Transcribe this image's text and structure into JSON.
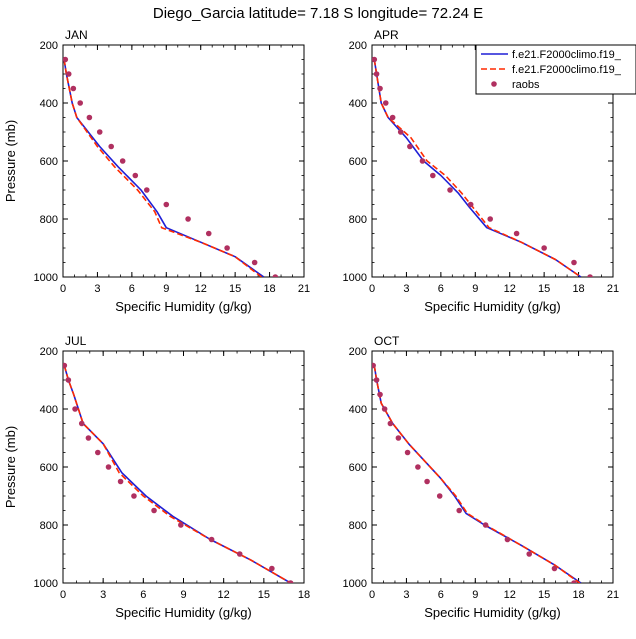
{
  "figure": {
    "title": "Diego_Garcia  latitude= 7.18 S longitude= 72.24 E"
  },
  "colors": {
    "series_blue": "#1f1fd6",
    "series_red": "#ff2a00",
    "raobs": "#b03060",
    "axis": "#000000"
  },
  "legend": {
    "entries": [
      {
        "label": "f.e21.F2000climo.f19_",
        "style": "solid",
        "color": "#1f1fd6"
      },
      {
        "label": "f.e21.F2000climo.f19_",
        "style": "dashed",
        "color": "#ff2a00"
      },
      {
        "label": "raobs",
        "style": "marker",
        "color": "#b03060"
      }
    ]
  },
  "chart_data": [
    {
      "type": "line",
      "panel": "JAN",
      "xlabel": "Specific Humidity (g/kg)",
      "ylabel": "Pressure (mb)",
      "xlim": [
        0,
        21
      ],
      "ylim": [
        200,
        1000
      ],
      "xticks": [
        0,
        3,
        6,
        9,
        12,
        15,
        18,
        21
      ],
      "yticks": [
        200,
        400,
        600,
        800,
        1000
      ],
      "y_inverted": true,
      "series": [
        {
          "name": "f.e21.F2000climo.f19_",
          "style": "solid",
          "x": [
            0.1,
            0.3,
            0.8,
            1.2,
            3.2,
            4.8,
            6.8,
            8.2,
            9.0,
            12.0,
            15.0,
            17.5
          ],
          "y": [
            250,
            300,
            400,
            450,
            550,
            620,
            700,
            775,
            830,
            880,
            930,
            1000
          ]
        },
        {
          "name": "f.e21.F2000climo.f19_",
          "style": "dashed",
          "x": [
            0.1,
            0.3,
            0.8,
            1.2,
            3.0,
            4.5,
            6.5,
            8.0,
            8.6,
            12.0,
            15.0,
            17.3
          ],
          "y": [
            250,
            300,
            400,
            450,
            550,
            620,
            700,
            775,
            830,
            880,
            930,
            1000
          ]
        },
        {
          "name": "raobs",
          "style": "marker",
          "x": [
            0.2,
            0.5,
            0.9,
            1.5,
            2.3,
            3.2,
            4.2,
            5.2,
            6.3,
            7.3,
            9.0,
            10.9,
            12.7,
            14.3,
            16.7,
            18.5
          ],
          "y": [
            250,
            300,
            350,
            400,
            450,
            500,
            550,
            600,
            650,
            700,
            750,
            800,
            850,
            900,
            950,
            1000
          ]
        }
      ]
    },
    {
      "type": "line",
      "panel": "APR",
      "xlabel": "Specific Humidity (g/kg)",
      "ylabel": "",
      "xlim": [
        0,
        21
      ],
      "ylim": [
        200,
        1000
      ],
      "xticks": [
        0,
        3,
        6,
        9,
        12,
        15,
        18,
        21
      ],
      "yticks": [
        200,
        400,
        600,
        800,
        1000
      ],
      "y_inverted": true,
      "series": [
        {
          "name": "f.e21.F2000climo.f19_",
          "style": "solid",
          "x": [
            0.2,
            0.4,
            0.8,
            1.4,
            3.0,
            4.5,
            6.0,
            7.5,
            8.5,
            10.0,
            13.0,
            16.0,
            18.2
          ],
          "y": [
            250,
            300,
            400,
            450,
            520,
            600,
            650,
            710,
            760,
            830,
            880,
            940,
            1000
          ]
        },
        {
          "name": "f.e21.F2000climo.f19_",
          "style": "dashed",
          "x": [
            0.2,
            0.4,
            0.8,
            1.4,
            3.4,
            4.8,
            6.4,
            7.8,
            8.8,
            10.2,
            13.0,
            16.0,
            18.2
          ],
          "y": [
            250,
            300,
            400,
            450,
            520,
            600,
            650,
            710,
            760,
            830,
            880,
            940,
            1000
          ]
        },
        {
          "name": "raobs",
          "style": "marker",
          "x": [
            0.2,
            0.4,
            0.7,
            1.2,
            1.8,
            2.5,
            3.3,
            4.4,
            5.3,
            6.8,
            8.6,
            10.3,
            12.6,
            15.0,
            17.6,
            19.0
          ],
          "y": [
            250,
            300,
            350,
            400,
            450,
            500,
            550,
            600,
            650,
            700,
            750,
            800,
            850,
            900,
            950,
            1000
          ]
        }
      ]
    },
    {
      "type": "line",
      "panel": "JUL",
      "xlabel": "Specific Humidity (g/kg)",
      "ylabel": "Pressure (mb)",
      "xlim": [
        0,
        18
      ],
      "ylim": [
        200,
        1000
      ],
      "xticks": [
        0,
        3,
        6,
        9,
        12,
        15,
        18
      ],
      "yticks": [
        200,
        400,
        600,
        800,
        1000
      ],
      "y_inverted": true,
      "series": [
        {
          "name": "f.e21.F2000climo.f19_",
          "style": "solid",
          "x": [
            0.1,
            0.4,
            0.8,
            1.5,
            3.0,
            4.4,
            6.2,
            8.2,
            11.0,
            14.0,
            17.0
          ],
          "y": [
            250,
            300,
            350,
            450,
            520,
            620,
            700,
            770,
            850,
            920,
            1000
          ]
        },
        {
          "name": "f.e21.F2000climo.f19_",
          "style": "dashed",
          "x": [
            0.1,
            0.4,
            0.8,
            1.5,
            3.0,
            4.2,
            6.0,
            8.0,
            11.0,
            14.0,
            17.0
          ],
          "y": [
            250,
            300,
            350,
            450,
            520,
            620,
            700,
            770,
            850,
            920,
            1000
          ]
        },
        {
          "name": "raobs",
          "style": "marker",
          "x": [
            0.1,
            0.4,
            0.9,
            1.4,
            1.9,
            2.6,
            3.4,
            4.3,
            5.3,
            6.8,
            8.8,
            11.1,
            13.2,
            15.6,
            17.0
          ],
          "y": [
            250,
            300,
            400,
            450,
            500,
            550,
            600,
            650,
            700,
            750,
            800,
            850,
            900,
            950,
            1000
          ]
        }
      ]
    },
    {
      "type": "line",
      "panel": "OCT",
      "xlabel": "Specific Humidity (g/kg)",
      "ylabel": "",
      "xlim": [
        0,
        21
      ],
      "ylim": [
        200,
        1000
      ],
      "xticks": [
        0,
        3,
        6,
        9,
        12,
        15,
        18,
        21
      ],
      "yticks": [
        200,
        400,
        600,
        800,
        1000
      ],
      "y_inverted": true,
      "series": [
        {
          "name": "f.e21.F2000climo.f19_",
          "style": "solid",
          "x": [
            0.2,
            0.4,
            0.8,
            1.8,
            3.2,
            4.6,
            6.0,
            7.2,
            8.2,
            9.8,
            13.0,
            16.0,
            18.2
          ],
          "y": [
            250,
            300,
            380,
            450,
            520,
            580,
            640,
            700,
            760,
            800,
            870,
            940,
            1000
          ]
        },
        {
          "name": "f.e21.F2000climo.f19_",
          "style": "dashed",
          "x": [
            0.2,
            0.4,
            0.8,
            1.8,
            3.2,
            4.6,
            6.0,
            7.3,
            8.3,
            9.9,
            13.0,
            16.0,
            18.1
          ],
          "y": [
            250,
            300,
            380,
            450,
            520,
            580,
            640,
            700,
            760,
            800,
            870,
            940,
            1000
          ]
        },
        {
          "name": "raobs",
          "style": "marker",
          "x": [
            0.1,
            0.4,
            0.7,
            1.1,
            1.6,
            2.3,
            3.1,
            4.0,
            4.8,
            5.9,
            7.6,
            9.9,
            11.8,
            13.7,
            15.9,
            17.6
          ],
          "y": [
            250,
            300,
            350,
            400,
            450,
            500,
            550,
            600,
            650,
            700,
            750,
            800,
            850,
            900,
            950,
            1000
          ]
        }
      ]
    }
  ]
}
